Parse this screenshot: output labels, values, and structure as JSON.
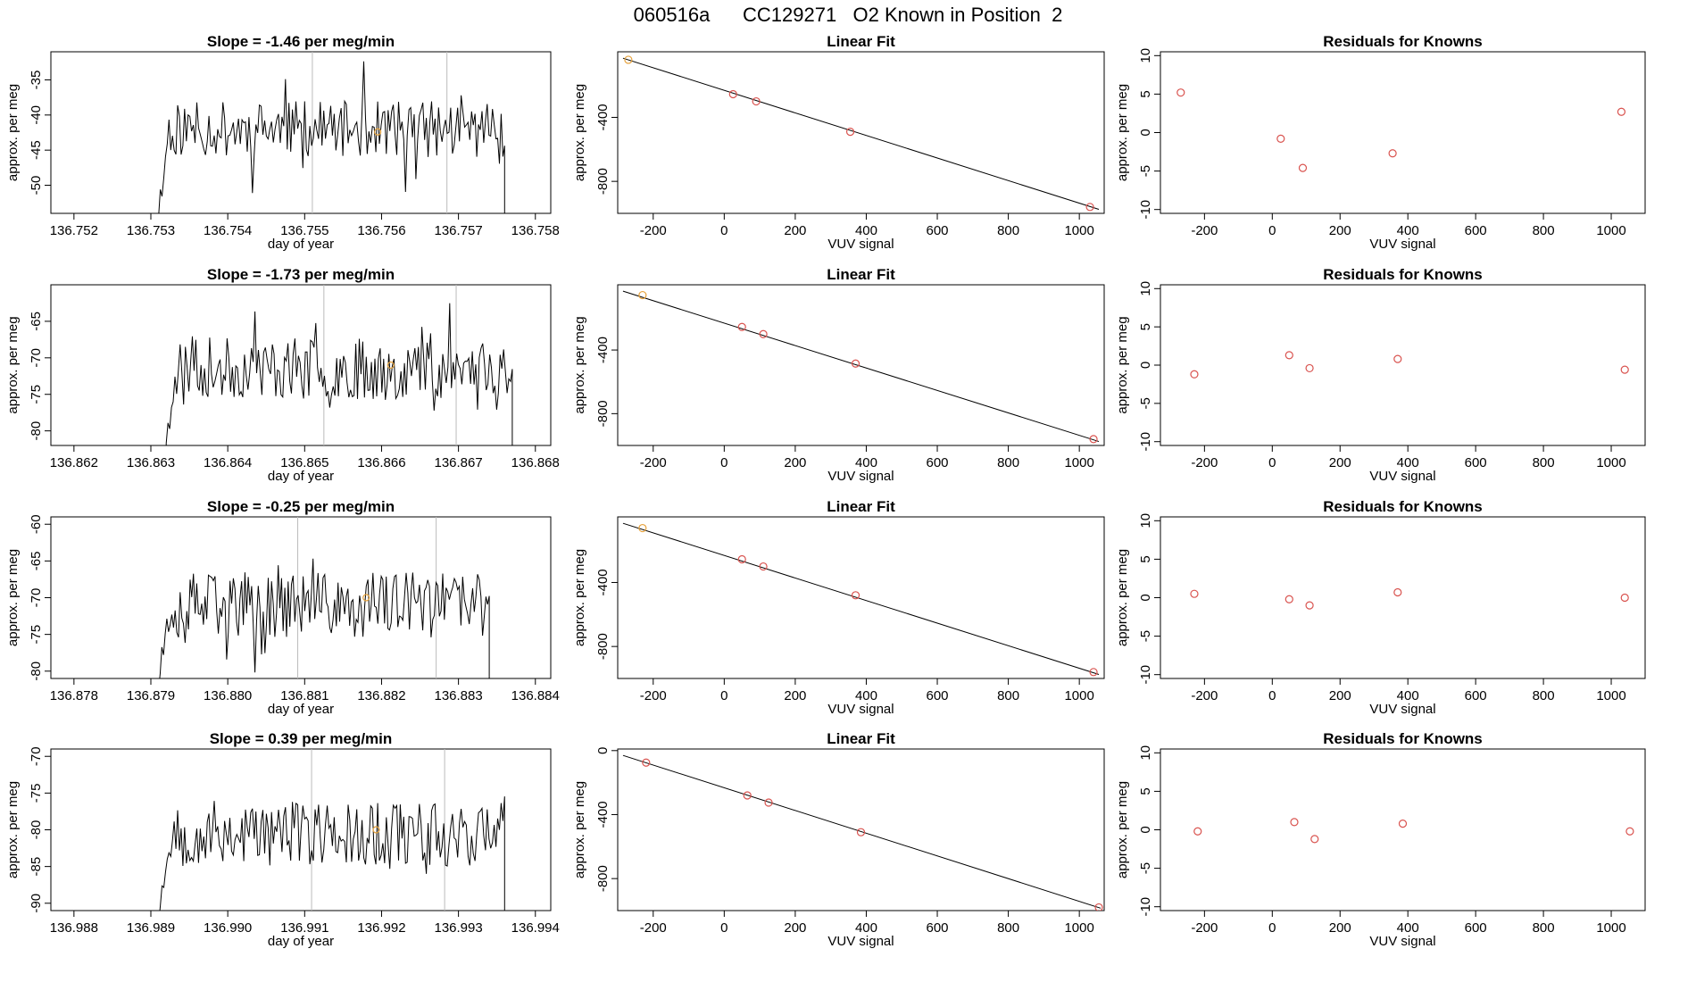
{
  "figure": {
    "title": "060516a      CC129271   O2 Known in Position  2",
    "colors": {
      "line": "#000000",
      "points": "#d9534f",
      "highlight": "#e6a23c",
      "vline": "#bbbbbb"
    }
  },
  "chart_data": [
    {
      "type": "line",
      "row": 1,
      "col": 1,
      "title": "Slope =  -1.46  per meg/min",
      "xlabel": "day of year",
      "ylabel": "approx. per meg",
      "xlim": [
        136.7517,
        136.7582
      ],
      "ylim": [
        -54,
        -31
      ],
      "xticks": [
        136.752,
        136.753,
        136.754,
        136.755,
        136.756,
        136.757,
        136.758
      ],
      "xtick_labels": [
        "136.752",
        "136.753",
        "136.754",
        "136.755",
        "136.756",
        "136.757",
        "136.758"
      ],
      "yticks": [
        -50,
        -45,
        -40,
        -35
      ],
      "ytick_labels": [
        "-50",
        "-45",
        "-40",
        "-35"
      ],
      "x_start": 136.7531,
      "x_end": 136.7576,
      "n_points": 200,
      "y_mean": -42,
      "y_amp": 4,
      "vlines": [
        136.7551,
        136.75685
      ],
      "highlight": [
        136.75595,
        -42.4
      ],
      "seed": 11
    },
    {
      "type": "scatter_fit",
      "row": 1,
      "col": 2,
      "title": "Linear Fit",
      "xlabel": "VUV signal",
      "ylabel": "approx. per meg",
      "xlim": [
        -300,
        1070
      ],
      "ylim": [
        -1000,
        10
      ],
      "xticks": [
        -200,
        0,
        200,
        400,
        600,
        800,
        1000
      ],
      "xtick_labels": [
        "-200",
        "0",
        "200",
        "400",
        "600",
        "800",
        "1000"
      ],
      "yticks": [
        -800,
        -400
      ],
      "ytick_labels": [
        "-800",
        "-400"
      ],
      "x": [
        -270,
        25,
        90,
        355,
        1030
      ],
      "y": [
        -40,
        -255,
        -300,
        -490,
        -960
      ],
      "fit": [
        [
          -285,
          -30
        ],
        [
          1055,
          -975
        ]
      ],
      "highlight_index": 0
    },
    {
      "type": "scatter",
      "row": 1,
      "col": 3,
      "title": "Residuals for Knowns",
      "xlabel": "VUV signal",
      "ylabel": "approx. per meg",
      "xlim": [
        -330,
        1100
      ],
      "ylim": [
        -10.5,
        10.5
      ],
      "xticks": [
        -200,
        0,
        200,
        400,
        600,
        800,
        1000
      ],
      "xtick_labels": [
        "-200",
        "0",
        "200",
        "400",
        "600",
        "800",
        "1000"
      ],
      "yticks": [
        -10,
        -5,
        0,
        5,
        10
      ],
      "ytick_labels": [
        "-10",
        "-5",
        "0",
        "5",
        "10"
      ],
      "x": [
        -270,
        25,
        90,
        355,
        1030
      ],
      "y": [
        5.2,
        -0.8,
        -4.6,
        -2.7,
        2.7
      ]
    },
    {
      "type": "line",
      "row": 2,
      "col": 1,
      "title": "Slope =  -1.73  per meg/min",
      "xlabel": "day of year",
      "ylabel": "approx. per meg",
      "xlim": [
        136.8617,
        136.8682
      ],
      "ylim": [
        -82,
        -60
      ],
      "xticks": [
        136.862,
        136.863,
        136.864,
        136.865,
        136.866,
        136.867,
        136.868
      ],
      "xtick_labels": [
        "136.862",
        "136.863",
        "136.864",
        "136.865",
        "136.866",
        "136.867",
        "136.868"
      ],
      "yticks": [
        -80,
        -75,
        -70,
        -65
      ],
      "ytick_labels": [
        "-80",
        "-75",
        "-70",
        "-65"
      ],
      "x_start": 136.8632,
      "x_end": 136.8677,
      "n_points": 200,
      "y_mean": -71.5,
      "y_amp": 4.2,
      "vlines": [
        136.86525,
        136.86697
      ],
      "highlight": [
        136.86612,
        -71
      ],
      "seed": 23
    },
    {
      "type": "scatter_fit",
      "row": 2,
      "col": 2,
      "title": "Linear Fit",
      "xlabel": "VUV signal",
      "ylabel": "approx. per meg",
      "xlim": [
        -300,
        1070
      ],
      "ylim": [
        -1000,
        10
      ],
      "xticks": [
        -200,
        0,
        200,
        400,
        600,
        800,
        1000
      ],
      "xtick_labels": [
        "-200",
        "0",
        "200",
        "400",
        "600",
        "800",
        "1000"
      ],
      "yticks": [
        -800,
        -400
      ],
      "ytick_labels": [
        "-800",
        "-400"
      ],
      "x": [
        -230,
        50,
        110,
        370,
        1040
      ],
      "y": [
        -55,
        -255,
        -300,
        -485,
        -960
      ],
      "fit": [
        [
          -285,
          -30
        ],
        [
          1055,
          -975
        ]
      ],
      "highlight_index": 0
    },
    {
      "type": "scatter",
      "row": 2,
      "col": 3,
      "title": "Residuals for Knowns",
      "xlabel": "VUV signal",
      "ylabel": "approx. per meg",
      "xlim": [
        -330,
        1100
      ],
      "ylim": [
        -10.5,
        10.5
      ],
      "xticks": [
        -200,
        0,
        200,
        400,
        600,
        800,
        1000
      ],
      "xtick_labels": [
        "-200",
        "0",
        "200",
        "400",
        "600",
        "800",
        "1000"
      ],
      "yticks": [
        -10,
        -5,
        0,
        5,
        10
      ],
      "ytick_labels": [
        "-10",
        "-5",
        "0",
        "5",
        "10"
      ],
      "x": [
        -230,
        50,
        110,
        370,
        1040
      ],
      "y": [
        -1.2,
        1.3,
        -0.4,
        0.8,
        -0.6
      ]
    },
    {
      "type": "line",
      "row": 3,
      "col": 1,
      "title": "Slope =  -0.25  per meg/min",
      "xlabel": "day of year",
      "ylabel": "approx. per meg",
      "xlim": [
        136.8777,
        136.8842
      ],
      "ylim": [
        -81,
        -59
      ],
      "xticks": [
        136.878,
        136.879,
        136.88,
        136.881,
        136.882,
        136.883,
        136.884
      ],
      "xtick_labels": [
        "136.878",
        "136.879",
        "136.880",
        "136.881",
        "136.882",
        "136.883",
        "136.884"
      ],
      "yticks": [
        -80,
        -75,
        -70,
        -65,
        -60
      ],
      "ytick_labels": [
        "-80",
        "-75",
        "-70",
        "-65",
        "-60"
      ],
      "x_start": 136.8791,
      "x_end": 136.8834,
      "n_points": 200,
      "y_mean": -71,
      "y_amp": 4.5,
      "vlines": [
        136.88091,
        136.88271
      ],
      "highlight": [
        136.8818,
        -70
      ],
      "seed": 37
    },
    {
      "type": "scatter_fit",
      "row": 3,
      "col": 2,
      "title": "Linear Fit",
      "xlabel": "VUV signal",
      "ylabel": "approx. per meg",
      "xlim": [
        -300,
        1070
      ],
      "ylim": [
        -1000,
        10
      ],
      "xticks": [
        -200,
        0,
        200,
        400,
        600,
        800,
        1000
      ],
      "xtick_labels": [
        "-200",
        "0",
        "200",
        "400",
        "600",
        "800",
        "1000"
      ],
      "yticks": [
        -800,
        -400
      ],
      "ytick_labels": [
        "-800",
        "-400"
      ],
      "x": [
        -230,
        50,
        110,
        370,
        1040
      ],
      "y": [
        -60,
        -255,
        -300,
        -480,
        -960
      ],
      "fit": [
        [
          -285,
          -30
        ],
        [
          1055,
          -975
        ]
      ],
      "highlight_index": 0
    },
    {
      "type": "scatter",
      "row": 3,
      "col": 3,
      "title": "Residuals for Knowns",
      "xlabel": "VUV signal",
      "ylabel": "approx. per meg",
      "xlim": [
        -330,
        1100
      ],
      "ylim": [
        -10.5,
        10.5
      ],
      "xticks": [
        -200,
        0,
        200,
        400,
        600,
        800,
        1000
      ],
      "xtick_labels": [
        "-200",
        "0",
        "200",
        "400",
        "600",
        "800",
        "1000"
      ],
      "yticks": [
        -10,
        -5,
        0,
        5,
        10
      ],
      "ytick_labels": [
        "-10",
        "-5",
        "0",
        "5",
        "10"
      ],
      "x": [
        -230,
        50,
        110,
        370,
        1040
      ],
      "y": [
        0.5,
        -0.2,
        -1.0,
        0.7,
        0.0
      ]
    },
    {
      "type": "line",
      "row": 4,
      "col": 1,
      "title": "Slope =  0.39  per meg/min",
      "xlabel": "day of year",
      "ylabel": "approx. per meg",
      "xlim": [
        136.9877,
        136.9942
      ],
      "ylim": [
        -91,
        -69
      ],
      "xticks": [
        136.988,
        136.989,
        136.99,
        136.991,
        136.992,
        136.993,
        136.994
      ],
      "xtick_labels": [
        "136.988",
        "136.989",
        "136.990",
        "136.991",
        "136.992",
        "136.993",
        "136.994"
      ],
      "yticks": [
        -90,
        -85,
        -80,
        -75,
        -70
      ],
      "ytick_labels": [
        "-90",
        "-85",
        "-80",
        "-75",
        "-70"
      ],
      "x_start": 136.9891,
      "x_end": 136.9936,
      "n_points": 200,
      "y_mean": -80.5,
      "y_amp": 4.5,
      "vlines": [
        136.99109,
        136.99282
      ],
      "highlight": [
        136.99193,
        -80
      ],
      "seed": 53
    },
    {
      "type": "scatter_fit",
      "row": 4,
      "col": 2,
      "title": "Linear Fit",
      "xlabel": "VUV signal",
      "ylabel": "approx. per meg",
      "xlim": [
        -300,
        1070
      ],
      "ylim": [
        -1000,
        10
      ],
      "xticks": [
        -200,
        0,
        200,
        400,
        600,
        800,
        1000
      ],
      "xtick_labels": [
        "-200",
        "0",
        "200",
        "400",
        "600",
        "800",
        "1000"
      ],
      "yticks": [
        -800,
        -400,
        0
      ],
      "ytick_labels": [
        "-800",
        "-400",
        "0"
      ],
      "x": [
        -220,
        65,
        125,
        385,
        1055
      ],
      "y": [
        -75,
        -280,
        -325,
        -510,
        -980
      ],
      "fit": [
        [
          -285,
          -30
        ],
        [
          1060,
          -985
        ]
      ],
      "highlight_index": -1
    },
    {
      "type": "scatter",
      "row": 4,
      "col": 3,
      "title": "Residuals for Knowns",
      "xlabel": "VUV signal",
      "ylabel": "approx. per meg",
      "xlim": [
        -330,
        1100
      ],
      "ylim": [
        -10.5,
        10.5
      ],
      "xticks": [
        -200,
        0,
        200,
        400,
        600,
        800,
        1000
      ],
      "xtick_labels": [
        "-200",
        "0",
        "200",
        "400",
        "600",
        "800",
        "1000"
      ],
      "yticks": [
        -10,
        -5,
        0,
        5,
        10
      ],
      "ytick_labels": [
        "-10",
        "-5",
        "0",
        "5",
        "10"
      ],
      "x": [
        -220,
        65,
        125,
        385,
        1055
      ],
      "y": [
        -0.2,
        1.0,
        -1.2,
        0.8,
        -0.2
      ]
    }
  ]
}
